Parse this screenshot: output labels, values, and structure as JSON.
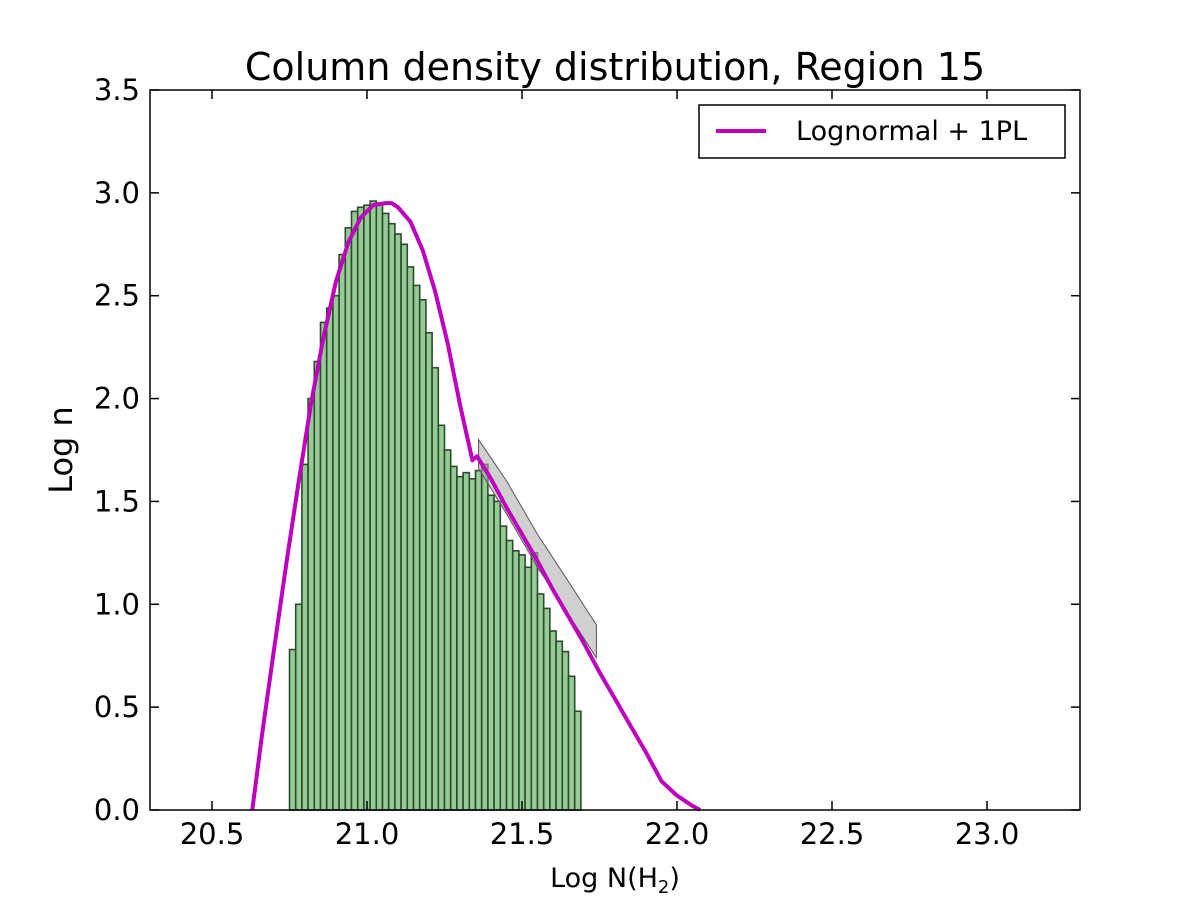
{
  "chart_data": {
    "type": "bar",
    "title": "Column density distribution, Region 15",
    "xlabel": "Log N(H",
    "xlabel_sub": "2",
    "xlabel_end": ")",
    "ylabel": "Log n",
    "xlim": [
      20.3,
      23.3
    ],
    "ylim": [
      0.0,
      3.5
    ],
    "x_ticks": [
      "20.5",
      "21.0",
      "21.5",
      "22.0",
      "22.5",
      "23.0"
    ],
    "y_ticks": [
      "0.0",
      "0.5",
      "1.0",
      "1.5",
      "2.0",
      "2.5",
      "3.0",
      "3.5"
    ],
    "legend": {
      "placement": "top-right",
      "entries": [
        {
          "label": "Lognormal + 1PL",
          "color": "#bf00bf"
        }
      ]
    },
    "histogram": {
      "x_start": 20.75,
      "bin_width": 0.02,
      "fill": "#8fc98f",
      "edge": "#2e4a2e",
      "values": [
        0.78,
        1.0,
        1.68,
        2.0,
        2.18,
        2.37,
        2.44,
        2.5,
        2.7,
        2.83,
        2.91,
        2.93,
        2.94,
        2.96,
        2.95,
        2.9,
        2.85,
        2.8,
        2.75,
        2.64,
        2.55,
        2.48,
        2.32,
        2.15,
        1.87,
        1.75,
        1.67,
        1.62,
        1.64,
        1.61,
        1.65,
        1.68,
        1.53,
        1.5,
        1.38,
        1.31,
        1.26,
        1.24,
        1.18,
        1.25,
        1.05,
        0.98,
        0.87,
        0.82,
        0.77,
        0.65,
        0.48
      ]
    },
    "series": [
      {
        "name": "Lognormal + 1PL",
        "color": "#bf00bf",
        "x": [
          20.63,
          20.66,
          20.7,
          20.74,
          20.78,
          20.82,
          20.86,
          20.9,
          20.94,
          20.98,
          21.02,
          21.06,
          21.08,
          21.1,
          21.14,
          21.18,
          21.22,
          21.26,
          21.3,
          21.34,
          21.355,
          21.4,
          21.45,
          21.5,
          21.55,
          21.6,
          21.65,
          21.7,
          21.75,
          21.8,
          21.85,
          21.9,
          21.95,
          22.0,
          22.05,
          22.075
        ],
        "y": [
          0.0,
          0.35,
          0.78,
          1.2,
          1.6,
          1.98,
          2.3,
          2.57,
          2.76,
          2.88,
          2.94,
          2.95,
          2.95,
          2.93,
          2.86,
          2.72,
          2.52,
          2.27,
          1.97,
          1.7,
          1.72,
          1.61,
          1.47,
          1.34,
          1.21,
          1.07,
          0.94,
          0.81,
          0.67,
          0.54,
          0.41,
          0.28,
          0.14,
          0.07,
          0.02,
          0.0
        ]
      }
    ],
    "uncertainty_band": {
      "color": "#a9a9a9",
      "x": [
        21.36,
        21.45,
        21.55,
        21.65,
        21.74
      ],
      "y_low": [
        1.66,
        1.44,
        1.18,
        0.95,
        0.74
      ],
      "y_high": [
        1.8,
        1.6,
        1.34,
        1.11,
        0.9
      ]
    }
  }
}
